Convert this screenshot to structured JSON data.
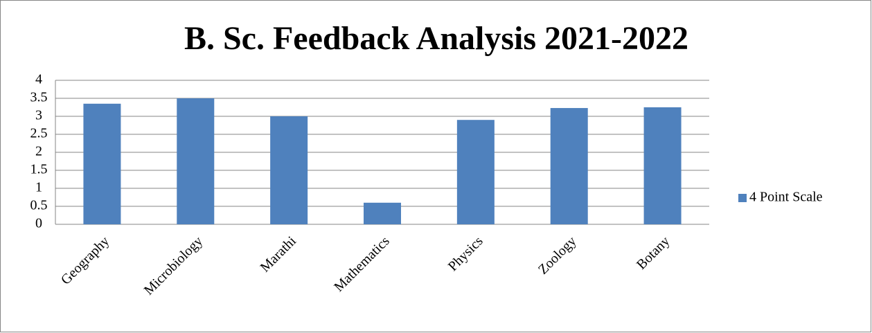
{
  "chart_data": {
    "type": "bar",
    "title": "B. Sc. Feedback Analysis 2021-2022",
    "categories": [
      "Geography",
      "Microbiology",
      "Marathi",
      "Mathematics",
      "Physics",
      "Zoology",
      "Botany"
    ],
    "series": [
      {
        "name": "4 Point Scale",
        "color": "#4f81bd",
        "values": [
          3.35,
          3.5,
          3.0,
          0.6,
          2.9,
          3.23,
          3.25
        ]
      }
    ],
    "ylim": [
      0,
      4
    ],
    "yticks": [
      0,
      0.5,
      1,
      1.5,
      2,
      2.5,
      3,
      3.5,
      4
    ],
    "grid": true,
    "legend": "right"
  }
}
